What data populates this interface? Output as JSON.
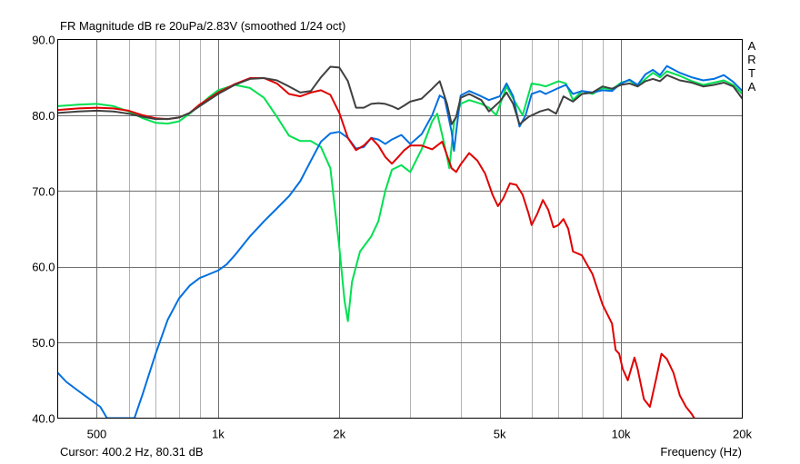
{
  "header": {
    "title": "FR Magnitude dB re 20uPa/2.83V (smoothed 1/24 oct)",
    "brand_letters": [
      "A",
      "R",
      "T",
      "A"
    ]
  },
  "footer": {
    "cursor": "Cursor: 400.2 Hz, 80.31 dB",
    "xlabel": "Frequency (Hz)"
  },
  "chart_data": {
    "type": "line",
    "title": "FR Magnitude dB re 20uPa/2.83V (smoothed 1/24 oct)",
    "xlabel": "Frequency (Hz)",
    "ylabel": "",
    "xscale": "log",
    "xlim": [
      400,
      20000
    ],
    "ylim": [
      40,
      90
    ],
    "grid": true,
    "legend": "none",
    "x_ticks": [
      {
        "value": 500,
        "label": "500"
      },
      {
        "value": 1000,
        "label": "1k"
      },
      {
        "value": 2000,
        "label": "2k"
      },
      {
        "value": 5000,
        "label": "5k"
      },
      {
        "value": 10000,
        "label": "10k"
      },
      {
        "value": 20000,
        "label": "20k"
      }
    ],
    "y_ticks": [
      {
        "value": 40,
        "label": "40.0"
      },
      {
        "value": 50,
        "label": "50.0"
      },
      {
        "value": 60,
        "label": "60.0"
      },
      {
        "value": 70,
        "label": "70.0"
      },
      {
        "value": 80,
        "label": "80.0"
      },
      {
        "value": 90,
        "label": "90.0"
      }
    ],
    "series": [
      {
        "color": "#00e050",
        "points": [
          [
            400,
            81.2
          ],
          [
            450,
            81.4
          ],
          [
            500,
            81.5
          ],
          [
            550,
            81.2
          ],
          [
            600,
            80.5
          ],
          [
            650,
            79.6
          ],
          [
            700,
            79.0
          ],
          [
            750,
            78.9
          ],
          [
            800,
            79.2
          ],
          [
            850,
            80.2
          ],
          [
            900,
            81.3
          ],
          [
            950,
            82.4
          ],
          [
            1000,
            83.3
          ],
          [
            1100,
            84.0
          ],
          [
            1200,
            83.6
          ],
          [
            1300,
            82.3
          ],
          [
            1400,
            79.8
          ],
          [
            1500,
            77.3
          ],
          [
            1600,
            76.6
          ],
          [
            1700,
            76.6
          ],
          [
            1800,
            75.8
          ],
          [
            1900,
            73.0
          ],
          [
            2000,
            62.5
          ],
          [
            2060,
            55.5
          ],
          [
            2100,
            52.8
          ],
          [
            2150,
            58.0
          ],
          [
            2250,
            62.0
          ],
          [
            2400,
            64.0
          ],
          [
            2500,
            66.0
          ],
          [
            2600,
            70.0
          ],
          [
            2700,
            72.8
          ],
          [
            2850,
            73.4
          ],
          [
            3000,
            72.5
          ],
          [
            3200,
            75.5
          ],
          [
            3400,
            79.2
          ],
          [
            3500,
            80.2
          ],
          [
            3650,
            76.0
          ],
          [
            3750,
            73.0
          ],
          [
            3850,
            79.0
          ],
          [
            4000,
            81.5
          ],
          [
            4200,
            82.0
          ],
          [
            4500,
            81.5
          ],
          [
            4700,
            81.0
          ],
          [
            4900,
            80.0
          ],
          [
            5200,
            83.8
          ],
          [
            5400,
            82.2
          ],
          [
            5700,
            80.0
          ],
          [
            6000,
            84.2
          ],
          [
            6300,
            84.0
          ],
          [
            6500,
            83.8
          ],
          [
            7000,
            84.5
          ],
          [
            7300,
            84.2
          ],
          [
            7600,
            82.0
          ],
          [
            8000,
            83.2
          ],
          [
            8500,
            82.8
          ],
          [
            9000,
            83.6
          ],
          [
            9500,
            83.4
          ],
          [
            10000,
            84.3
          ],
          [
            10500,
            84.6
          ],
          [
            11000,
            83.8
          ],
          [
            11500,
            84.8
          ],
          [
            12000,
            85.6
          ],
          [
            12500,
            85.0
          ],
          [
            13000,
            85.8
          ],
          [
            14000,
            85.2
          ],
          [
            15000,
            84.5
          ],
          [
            16000,
            84.0
          ],
          [
            17000,
            84.3
          ],
          [
            18000,
            84.6
          ],
          [
            19000,
            84.0
          ],
          [
            20000,
            82.8
          ]
        ]
      },
      {
        "color": "#0070e0",
        "points": [
          [
            400,
            46.0
          ],
          [
            420,
            44.8
          ],
          [
            450,
            43.6
          ],
          [
            480,
            42.5
          ],
          [
            510,
            41.5
          ],
          [
            530,
            40.0
          ],
          [
            620,
            40.0
          ],
          [
            650,
            43.2
          ],
          [
            700,
            48.5
          ],
          [
            750,
            53.0
          ],
          [
            800,
            55.8
          ],
          [
            850,
            57.5
          ],
          [
            900,
            58.5
          ],
          [
            950,
            59.0
          ],
          [
            1000,
            59.5
          ],
          [
            1050,
            60.3
          ],
          [
            1100,
            61.5
          ],
          [
            1200,
            64.0
          ],
          [
            1300,
            66.0
          ],
          [
            1400,
            67.7
          ],
          [
            1500,
            69.3
          ],
          [
            1600,
            71.3
          ],
          [
            1700,
            74.0
          ],
          [
            1800,
            76.5
          ],
          [
            1900,
            77.6
          ],
          [
            2000,
            77.8
          ],
          [
            2100,
            77.0
          ],
          [
            2200,
            75.6
          ],
          [
            2300,
            75.8
          ],
          [
            2400,
            77.0
          ],
          [
            2500,
            76.8
          ],
          [
            2600,
            76.2
          ],
          [
            2700,
            76.8
          ],
          [
            2850,
            77.4
          ],
          [
            3000,
            76.2
          ],
          [
            3200,
            77.5
          ],
          [
            3400,
            80.0
          ],
          [
            3550,
            82.6
          ],
          [
            3650,
            82.2
          ],
          [
            3800,
            77.8
          ],
          [
            3850,
            75.3
          ],
          [
            3900,
            77.8
          ],
          [
            4000,
            82.6
          ],
          [
            4200,
            83.2
          ],
          [
            4500,
            82.5
          ],
          [
            4700,
            82.0
          ],
          [
            5000,
            82.5
          ],
          [
            5200,
            84.2
          ],
          [
            5400,
            82.5
          ],
          [
            5600,
            78.5
          ],
          [
            5800,
            80.0
          ],
          [
            6000,
            82.8
          ],
          [
            6300,
            83.2
          ],
          [
            6500,
            82.8
          ],
          [
            7000,
            83.6
          ],
          [
            7300,
            84.0
          ],
          [
            7600,
            82.8
          ],
          [
            8000,
            83.2
          ],
          [
            8500,
            83.0
          ],
          [
            9000,
            83.3
          ],
          [
            9500,
            83.2
          ],
          [
            10000,
            84.2
          ],
          [
            10500,
            84.7
          ],
          [
            11000,
            84.0
          ],
          [
            11500,
            85.4
          ],
          [
            12000,
            86.0
          ],
          [
            12500,
            85.3
          ],
          [
            13000,
            86.5
          ],
          [
            14000,
            85.6
          ],
          [
            15000,
            85.0
          ],
          [
            16000,
            84.6
          ],
          [
            17000,
            84.8
          ],
          [
            18000,
            85.3
          ],
          [
            19000,
            84.4
          ],
          [
            20000,
            83.2
          ]
        ]
      },
      {
        "color": "#e00000",
        "points": [
          [
            400,
            80.7
          ],
          [
            450,
            80.9
          ],
          [
            500,
            81.0
          ],
          [
            550,
            80.9
          ],
          [
            600,
            80.6
          ],
          [
            650,
            80.0
          ],
          [
            700,
            79.6
          ],
          [
            750,
            79.5
          ],
          [
            800,
            79.7
          ],
          [
            850,
            80.3
          ],
          [
            900,
            81.4
          ],
          [
            1000,
            83.0
          ],
          [
            1100,
            84.1
          ],
          [
            1200,
            84.9
          ],
          [
            1300,
            84.9
          ],
          [
            1400,
            84.2
          ],
          [
            1500,
            82.8
          ],
          [
            1600,
            82.5
          ],
          [
            1700,
            83.0
          ],
          [
            1800,
            83.3
          ],
          [
            1900,
            82.7
          ],
          [
            2000,
            80.3
          ],
          [
            2100,
            77.0
          ],
          [
            2200,
            75.4
          ],
          [
            2300,
            76.0
          ],
          [
            2400,
            77.0
          ],
          [
            2500,
            76.0
          ],
          [
            2600,
            74.5
          ],
          [
            2700,
            73.6
          ],
          [
            2800,
            74.5
          ],
          [
            2900,
            75.4
          ],
          [
            3000,
            76.0
          ],
          [
            3200,
            76.0
          ],
          [
            3400,
            75.5
          ],
          [
            3600,
            76.5
          ],
          [
            3800,
            73.0
          ],
          [
            3900,
            72.5
          ],
          [
            4000,
            73.5
          ],
          [
            4200,
            75.0
          ],
          [
            4400,
            74.0
          ],
          [
            4600,
            72.3
          ],
          [
            4800,
            69.5
          ],
          [
            4950,
            68.0
          ],
          [
            5100,
            69.0
          ],
          [
            5300,
            71.0
          ],
          [
            5500,
            70.8
          ],
          [
            5700,
            69.5
          ],
          [
            5900,
            67.0
          ],
          [
            6000,
            65.5
          ],
          [
            6200,
            67.0
          ],
          [
            6400,
            68.8
          ],
          [
            6600,
            67.5
          ],
          [
            6800,
            65.2
          ],
          [
            7000,
            65.5
          ],
          [
            7200,
            66.3
          ],
          [
            7400,
            65.0
          ],
          [
            7600,
            62.0
          ],
          [
            8000,
            61.5
          ],
          [
            8500,
            59.0
          ],
          [
            9000,
            55.0
          ],
          [
            9500,
            52.5
          ],
          [
            9700,
            49.0
          ],
          [
            9900,
            48.5
          ],
          [
            10100,
            46.5
          ],
          [
            10400,
            45.0
          ],
          [
            10800,
            48.0
          ],
          [
            11000,
            46.5
          ],
          [
            11400,
            42.5
          ],
          [
            11800,
            41.5
          ],
          [
            12200,
            45.0
          ],
          [
            12600,
            48.5
          ],
          [
            13000,
            47.8
          ],
          [
            13500,
            46.0
          ],
          [
            14000,
            43.0
          ],
          [
            14500,
            41.5
          ],
          [
            15000,
            40.5
          ],
          [
            15200,
            40.0
          ]
        ]
      },
      {
        "color": "#404040",
        "points": [
          [
            400,
            80.3
          ],
          [
            450,
            80.5
          ],
          [
            500,
            80.6
          ],
          [
            550,
            80.5
          ],
          [
            600,
            80.2
          ],
          [
            650,
            79.8
          ],
          [
            700,
            79.5
          ],
          [
            750,
            79.5
          ],
          [
            800,
            79.7
          ],
          [
            850,
            80.3
          ],
          [
            900,
            81.2
          ],
          [
            1000,
            82.8
          ],
          [
            1100,
            84.0
          ],
          [
            1200,
            84.8
          ],
          [
            1300,
            84.9
          ],
          [
            1400,
            84.6
          ],
          [
            1500,
            83.8
          ],
          [
            1600,
            83.0
          ],
          [
            1700,
            83.2
          ],
          [
            1800,
            85.0
          ],
          [
            1900,
            86.4
          ],
          [
            2000,
            86.3
          ],
          [
            2100,
            84.5
          ],
          [
            2200,
            81.0
          ],
          [
            2300,
            81.0
          ],
          [
            2400,
            81.5
          ],
          [
            2500,
            81.6
          ],
          [
            2600,
            81.5
          ],
          [
            2700,
            81.2
          ],
          [
            2800,
            80.8
          ],
          [
            2900,
            81.3
          ],
          [
            3000,
            81.8
          ],
          [
            3200,
            82.2
          ],
          [
            3400,
            83.5
          ],
          [
            3550,
            84.5
          ],
          [
            3700,
            81.5
          ],
          [
            3800,
            78.8
          ],
          [
            3900,
            79.8
          ],
          [
            4000,
            82.3
          ],
          [
            4200,
            82.8
          ],
          [
            4500,
            82.0
          ],
          [
            4700,
            80.5
          ],
          [
            5000,
            81.8
          ],
          [
            5200,
            83.0
          ],
          [
            5400,
            81.5
          ],
          [
            5600,
            78.8
          ],
          [
            5900,
            79.8
          ],
          [
            6300,
            80.5
          ],
          [
            6600,
            80.8
          ],
          [
            6900,
            80.2
          ],
          [
            7200,
            82.5
          ],
          [
            7600,
            81.8
          ],
          [
            8000,
            82.8
          ],
          [
            8500,
            83.0
          ],
          [
            9000,
            83.8
          ],
          [
            9500,
            83.5
          ],
          [
            10000,
            84.0
          ],
          [
            10500,
            84.2
          ],
          [
            11000,
            83.8
          ],
          [
            11500,
            84.5
          ],
          [
            12000,
            84.8
          ],
          [
            12500,
            84.5
          ],
          [
            13000,
            85.3
          ],
          [
            14000,
            84.6
          ],
          [
            15000,
            84.3
          ],
          [
            16000,
            83.8
          ],
          [
            17000,
            84.0
          ],
          [
            18000,
            84.3
          ],
          [
            19000,
            83.8
          ],
          [
            20000,
            82.2
          ]
        ]
      }
    ]
  }
}
